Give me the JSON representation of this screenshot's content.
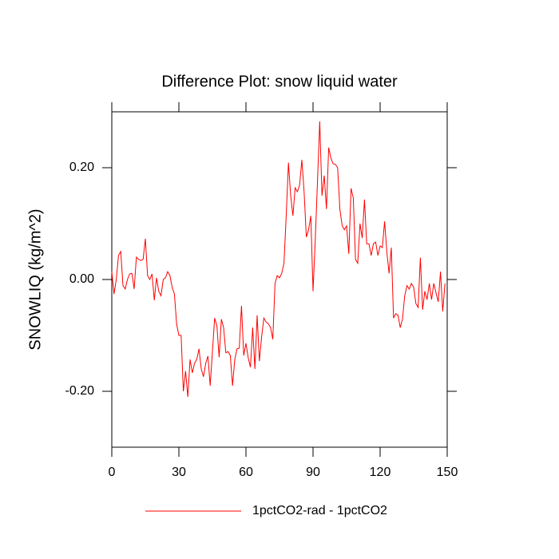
{
  "chart_data": {
    "type": "line",
    "title": "Difference Plot: snow liquid water",
    "y_label": "SNOWLIQ  (kg/m^2)",
    "xlim": [
      0,
      150
    ],
    "xticks": [
      0,
      30,
      60,
      90,
      120,
      150
    ],
    "ylim": [
      -0.3,
      0.3
    ],
    "yticks": [
      {
        "value": 0.2,
        "label": "0.20"
      },
      {
        "value": 0,
        "label": "0.00"
      },
      {
        "value": -0.2,
        "label": "-0.20"
      }
    ],
    "x": [
      0,
      1,
      2,
      3,
      4,
      5,
      6,
      7,
      8,
      9,
      10,
      11,
      12,
      13,
      14,
      15,
      16,
      17,
      18,
      19,
      20,
      21,
      22,
      23,
      24,
      25,
      26,
      27,
      28,
      29,
      30,
      31,
      32,
      33,
      34,
      35,
      36,
      37,
      38,
      39,
      40,
      41,
      42,
      43,
      44,
      45,
      46,
      47,
      48,
      49,
      50,
      51,
      52,
      53,
      54,
      55,
      56,
      57,
      58,
      59,
      60,
      61,
      62,
      63,
      64,
      65,
      66,
      67,
      68,
      69,
      70,
      71,
      72,
      73,
      74,
      75,
      76,
      77,
      78,
      79,
      80,
      81,
      82,
      83,
      84,
      85,
      86,
      87,
      88,
      89,
      90,
      91,
      92,
      93,
      94,
      95,
      96,
      97,
      98,
      99,
      100,
      101,
      102,
      103,
      104,
      105,
      106,
      107,
      108,
      109,
      110,
      111,
      112,
      113,
      114,
      115,
      116,
      117,
      118,
      119,
      120,
      121,
      122,
      123,
      124,
      125,
      126,
      127,
      128,
      129,
      130,
      131,
      132,
      133,
      134,
      135,
      136,
      137,
      138,
      139,
      140,
      141,
      142,
      143,
      144,
      145,
      146,
      147,
      148,
      149
    ],
    "series": [
      {
        "name": "1pctCO2-rad - 1pctCO2",
        "color": "#ff0000",
        "values": [
          0.014,
          -0.026,
          0,
          0.043,
          0.05,
          -0.011,
          -0.017,
          0,
          0.01,
          0.011,
          -0.017,
          0.04,
          0.036,
          0.034,
          0.036,
          0.073,
          0.007,
          0,
          0.01,
          -0.037,
          0.003,
          -0.021,
          -0.029,
          0,
          0.003,
          0.014,
          0.007,
          -0.014,
          -0.026,
          -0.08,
          -0.1,
          -0.1,
          -0.2,
          -0.164,
          -0.21,
          -0.143,
          -0.167,
          -0.15,
          -0.143,
          -0.124,
          -0.16,
          -0.174,
          -0.15,
          -0.137,
          -0.19,
          -0.129,
          -0.069,
          -0.083,
          -0.139,
          -0.071,
          -0.086,
          -0.131,
          -0.129,
          -0.136,
          -0.19,
          -0.143,
          -0.124,
          -0.123,
          -0.047,
          -0.136,
          -0.114,
          -0.14,
          -0.157,
          -0.086,
          -0.16,
          -0.064,
          -0.146,
          -0.103,
          -0.069,
          -0.076,
          -0.079,
          -0.086,
          -0.107,
          -0.007,
          0.007,
          0.003,
          0.011,
          0.029,
          0.114,
          0.209,
          0.15,
          0.114,
          0.164,
          0.157,
          0.169,
          0.214,
          0.157,
          0.076,
          0.089,
          0.114,
          -0.021,
          0.071,
          0.177,
          0.283,
          0.15,
          0.186,
          0.126,
          0.236,
          0.217,
          0.207,
          0.206,
          0.2,
          0.126,
          0.097,
          0.089,
          0.096,
          0.046,
          0.163,
          0.146,
          0.036,
          0.029,
          0.1,
          0.074,
          0.143,
          0.064,
          0.064,
          0.043,
          0.064,
          0.067,
          0.043,
          0.06,
          0.057,
          0.104,
          0.05,
          0.011,
          0.057,
          -0.069,
          -0.061,
          -0.064,
          -0.086,
          -0.071,
          -0.029,
          -0.011,
          -0.017,
          -0.007,
          -0.014,
          -0.043,
          -0.05,
          0.039,
          -0.054,
          -0.021,
          -0.036,
          -0.007,
          -0.036,
          -0.007,
          -0.024,
          -0.04,
          0.014,
          -0.057,
          -0.007
        ]
      }
    ]
  }
}
